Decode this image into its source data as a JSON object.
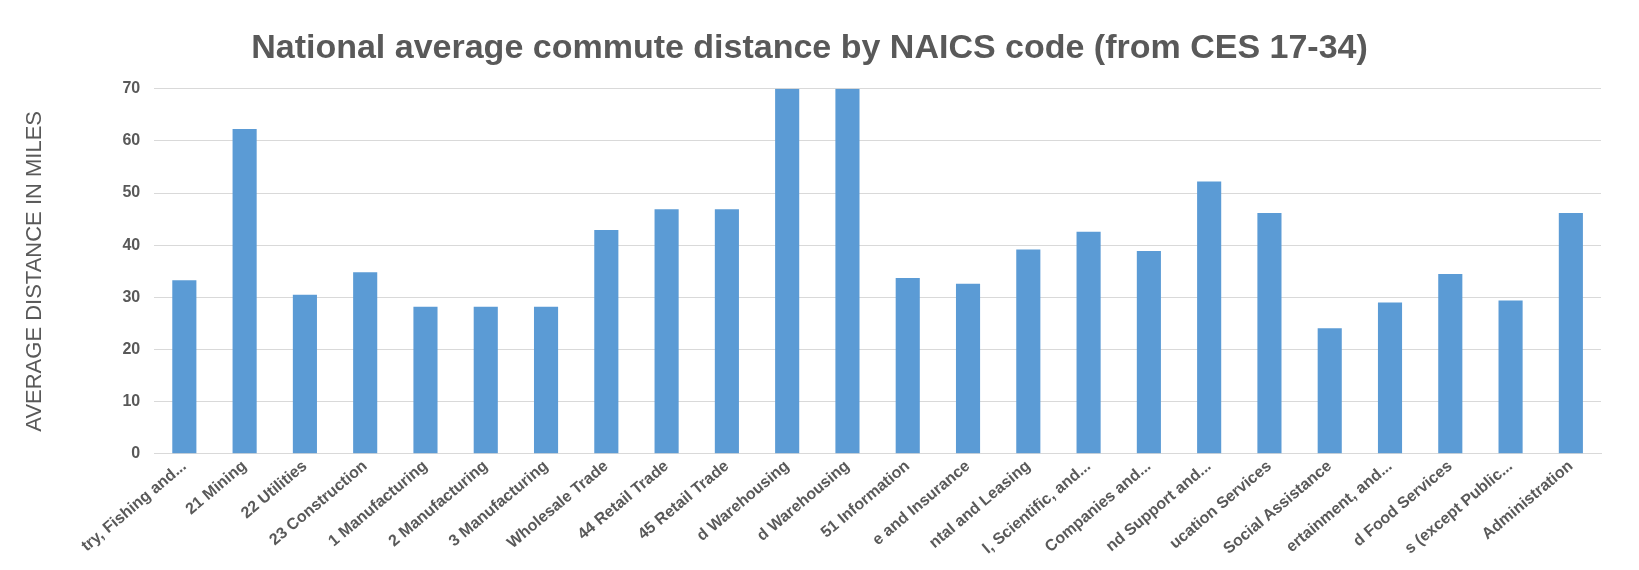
{
  "chart_data": {
    "type": "bar",
    "title": "National average commute distance by NAICS code (from CES 17-34)",
    "ylabel": "AVERAGE DISTANCE IN MILES",
    "categories": [
      "try, Fishing and...",
      "21 Mining",
      "22 Utilities",
      "23 Construction",
      "1 Manufacturing",
      "2 Manufacturing",
      "3 Manufacturing",
      "Wholesale Trade",
      "44 Retail Trade",
      "45 Retail Trade",
      "d Warehousing",
      "d Warehousing",
      "51 Information",
      "e and Insurance",
      "ntal and Leasing",
      "l, Scientific, and...",
      "Companies and...",
      "nd Support and...",
      "ucation Services",
      "Social Assistance",
      "ertainment, and...",
      "d Food Services",
      "s (except Public...",
      "Administration"
    ],
    "values": [
      33.3,
      62.3,
      30.5,
      34.8,
      28.2,
      28.2,
      28.2,
      42.9,
      46.9,
      46.9,
      70,
      70,
      33.7,
      32.6,
      39.2,
      42.6,
      38.9,
      52.2,
      46.2,
      24.1,
      29,
      34.5,
      29.4,
      46.2
    ],
    "color": "#5b9bd5",
    "ylim": [
      0,
      70
    ],
    "yticks": [
      0,
      10,
      20,
      30,
      40,
      50,
      60,
      70
    ],
    "grid": "y"
  }
}
